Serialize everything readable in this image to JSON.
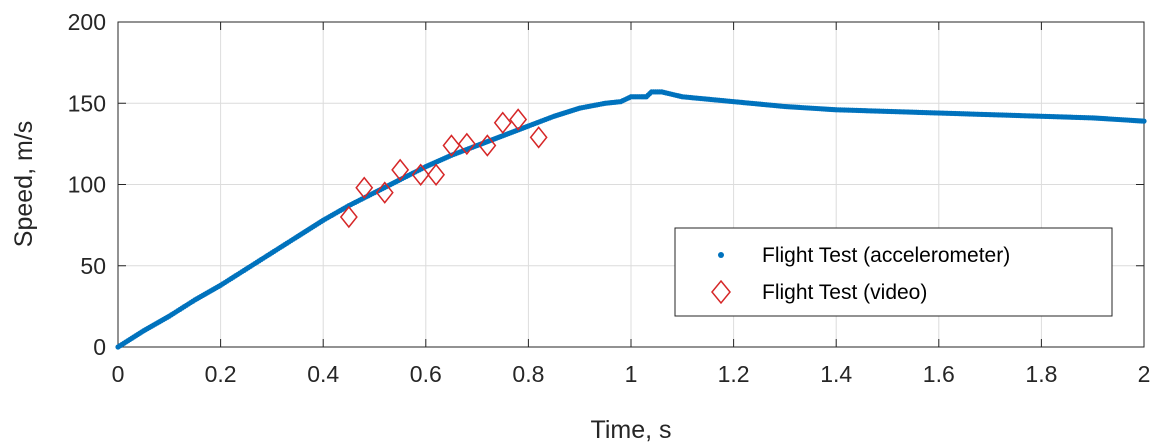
{
  "chart_data": {
    "type": "scatter",
    "xlabel": "Time, s",
    "ylabel": "Speed, m/s",
    "xlim": [
      0,
      2
    ],
    "ylim": [
      0,
      200
    ],
    "xticks": [
      0,
      0.2,
      0.4,
      0.6,
      0.8,
      1,
      1.2,
      1.4,
      1.6,
      1.8,
      2
    ],
    "xtick_labels": [
      "0",
      "0.2",
      "0.4",
      "0.6",
      "0.8",
      "1",
      "1.2",
      "1.4",
      "1.6",
      "1.8",
      "2"
    ],
    "yticks": [
      0,
      50,
      100,
      150,
      200
    ],
    "ytick_labels": [
      "0",
      "50",
      "100",
      "150",
      "200"
    ],
    "grid": true,
    "legend_position": "bottom-right",
    "series": [
      {
        "name": "Flight Test (accelerometer)",
        "marker": "dot",
        "color": "#0072BD",
        "x": [
          0,
          0.05,
          0.1,
          0.15,
          0.2,
          0.25,
          0.3,
          0.35,
          0.4,
          0.45,
          0.5,
          0.55,
          0.6,
          0.65,
          0.7,
          0.75,
          0.8,
          0.85,
          0.9,
          0.95,
          0.98,
          1.0,
          1.02,
          1.03,
          1.04,
          1.06,
          1.1,
          1.2,
          1.3,
          1.4,
          1.5,
          1.6,
          1.7,
          1.8,
          1.9,
          2.0
        ],
        "y": [
          0,
          10,
          19,
          29,
          38,
          48,
          58,
          68,
          78,
          87,
          95,
          103,
          111,
          118,
          124,
          130,
          136,
          142,
          147,
          150,
          151,
          154,
          154,
          154,
          157,
          157,
          154,
          151,
          148,
          146,
          145,
          144,
          143,
          142,
          141,
          139
        ]
      },
      {
        "name": "Flight Test (video)",
        "marker": "diamond",
        "color": "#D62728",
        "x": [
          0.45,
          0.48,
          0.52,
          0.55,
          0.59,
          0.62,
          0.65,
          0.68,
          0.72,
          0.75,
          0.78,
          0.82
        ],
        "y": [
          80,
          98,
          95,
          109,
          106,
          106,
          124,
          125,
          124,
          138,
          140,
          129
        ]
      }
    ]
  }
}
